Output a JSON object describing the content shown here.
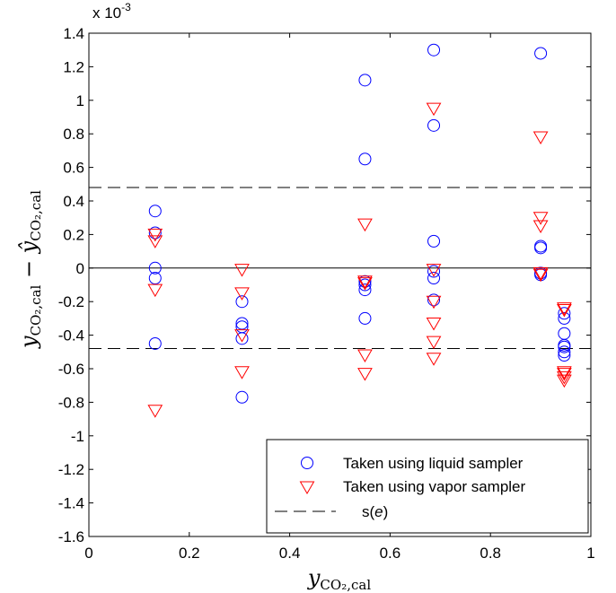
{
  "chart_data": {
    "type": "scatter",
    "title": "",
    "xlim": [
      0,
      1
    ],
    "ylim": [
      -1.6,
      1.4
    ],
    "y_scale_note": "x 10",
    "y_scale_exponent": "-3",
    "xticks": [
      "0",
      "0.2",
      "0.4",
      "0.6",
      "0.8",
      "1"
    ],
    "yticks": [
      "-1.6",
      "-1.4",
      "-1.2",
      "-1",
      "-0.8",
      "-0.6",
      "-0.4",
      "-0.2",
      "0",
      "0.2",
      "0.4",
      "0.6",
      "0.8",
      "1",
      "1.2",
      "1.4"
    ],
    "xlabel": {
      "main": "y",
      "sub": "CO₂,cal"
    },
    "ylabel": {
      "term1": "y",
      "sub1": "CO₂,cal",
      "minus": " − ",
      "term2": "ŷ",
      "sub2": "CO₂,cal"
    },
    "reference_lines": [
      {
        "type": "solid",
        "y": 0
      },
      {
        "type": "dashed",
        "y": 0.48,
        "name": "s(e)"
      },
      {
        "type": "dashed",
        "y": -0.48,
        "name": "s(e)"
      }
    ],
    "series": [
      {
        "name": "Taken using liquid sampler",
        "marker": "circle",
        "color": "#0000ff",
        "points": [
          [
            0.132,
            0.34
          ],
          [
            0.132,
            0.21
          ],
          [
            0.132,
            0.0
          ],
          [
            0.132,
            -0.06
          ],
          [
            0.132,
            -0.45
          ],
          [
            0.305,
            -0.2
          ],
          [
            0.305,
            -0.33
          ],
          [
            0.305,
            -0.35
          ],
          [
            0.305,
            -0.42
          ],
          [
            0.305,
            -0.77
          ],
          [
            0.55,
            1.12
          ],
          [
            0.55,
            0.65
          ],
          [
            0.55,
            -0.08
          ],
          [
            0.55,
            -0.1
          ],
          [
            0.55,
            -0.13
          ],
          [
            0.55,
            -0.3
          ],
          [
            0.687,
            1.3
          ],
          [
            0.687,
            0.85
          ],
          [
            0.687,
            0.16
          ],
          [
            0.687,
            -0.02
          ],
          [
            0.687,
            -0.06
          ],
          [
            0.687,
            -0.19
          ],
          [
            0.9,
            1.28
          ],
          [
            0.9,
            0.13
          ],
          [
            0.9,
            0.12
          ],
          [
            0.9,
            -0.03
          ],
          [
            0.9,
            -0.04
          ],
          [
            0.947,
            -0.27
          ],
          [
            0.947,
            -0.3
          ],
          [
            0.947,
            -0.39
          ],
          [
            0.947,
            -0.46
          ],
          [
            0.947,
            -0.47
          ],
          [
            0.947,
            -0.5
          ],
          [
            0.947,
            -0.52
          ]
        ]
      },
      {
        "name": "Taken using vapor sampler",
        "marker": "triangle-down",
        "color": "#ff0000",
        "points": [
          [
            0.132,
            0.2
          ],
          [
            0.132,
            0.16
          ],
          [
            0.132,
            -0.13
          ],
          [
            0.132,
            -0.85
          ],
          [
            0.305,
            -0.01
          ],
          [
            0.305,
            -0.15
          ],
          [
            0.305,
            -0.4
          ],
          [
            0.305,
            -0.62
          ],
          [
            0.55,
            0.26
          ],
          [
            0.55,
            -0.08
          ],
          [
            0.55,
            -0.09
          ],
          [
            0.55,
            -0.52
          ],
          [
            0.55,
            -0.63
          ],
          [
            0.687,
            0.95
          ],
          [
            0.687,
            -0.01
          ],
          [
            0.687,
            -0.2
          ],
          [
            0.687,
            -0.33
          ],
          [
            0.687,
            -0.44
          ],
          [
            0.687,
            -0.54
          ],
          [
            0.9,
            0.78
          ],
          [
            0.9,
            0.3
          ],
          [
            0.9,
            0.25
          ],
          [
            0.9,
            -0.03
          ],
          [
            0.9,
            -0.04
          ],
          [
            0.947,
            -0.24
          ],
          [
            0.947,
            -0.25
          ],
          [
            0.947,
            -0.62
          ],
          [
            0.947,
            -0.63
          ],
          [
            0.947,
            -0.65
          ],
          [
            0.947,
            -0.67
          ]
        ]
      }
    ],
    "legend": {
      "position": "bottom-right",
      "entries": [
        {
          "marker": "circle",
          "label": "Taken using liquid sampler"
        },
        {
          "marker": "triangle-down",
          "label": "Taken using vapor sampler"
        },
        {
          "marker": "dashed-line",
          "label_prefix": "s(",
          "label_italic": "e",
          "label_suffix": ")"
        }
      ]
    }
  }
}
